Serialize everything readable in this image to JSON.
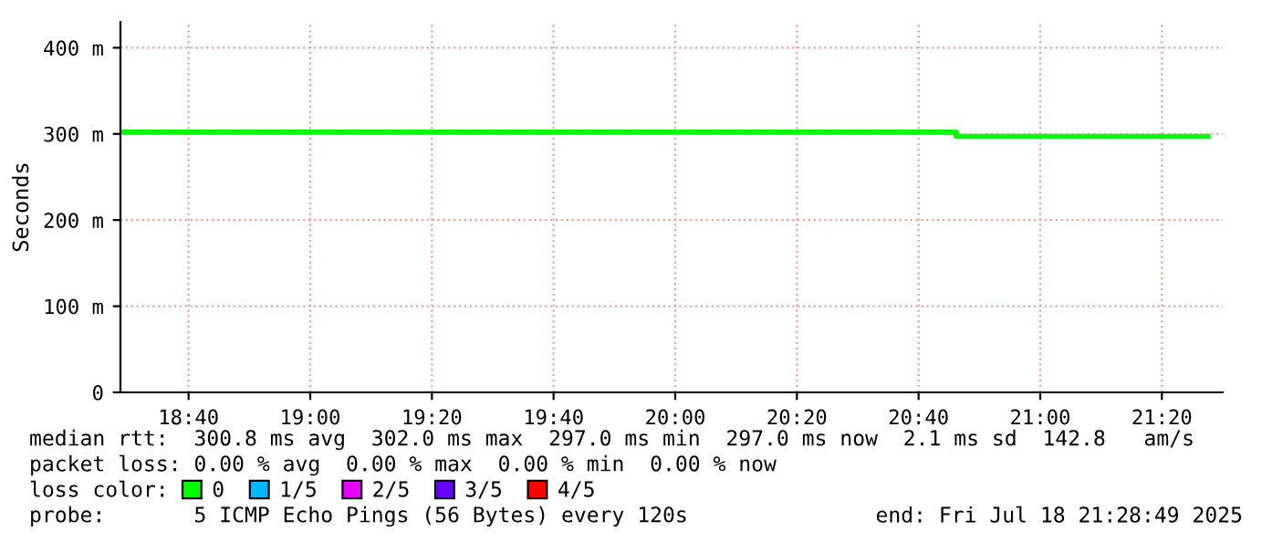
{
  "chart_data": {
    "type": "step",
    "ylabel": "Seconds",
    "series": [
      {
        "name": "0",
        "color": "#00ff00",
        "x": [
          18.48,
          20.77,
          21.46
        ],
        "values": [
          302,
          297,
          297
        ]
      },
      {
        "name": "1/5",
        "color": "#00b8ff"
      },
      {
        "name": "2/5",
        "color": "#e600ff"
      },
      {
        "name": "3/5",
        "color": "#6600ff"
      },
      {
        "name": "4/5",
        "color": "#ff0000"
      }
    ],
    "legend": "bottom",
    "legend_title": "loss color:",
    "xlim": [
      18.48,
      21.5
    ],
    "xticks": [
      {
        "value": 18.6667,
        "label": "18:40"
      },
      {
        "value": 19.0,
        "label": "19:00"
      },
      {
        "value": 19.3333,
        "label": "19:20"
      },
      {
        "value": 19.6667,
        "label": "19:40"
      },
      {
        "value": 20.0,
        "label": "20:00"
      },
      {
        "value": 20.3333,
        "label": "20:20"
      },
      {
        "value": 20.6667,
        "label": "20:40"
      },
      {
        "value": 21.0,
        "label": "21:00"
      },
      {
        "value": 21.3333,
        "label": "21:20"
      }
    ],
    "ylim": [
      0,
      430
    ],
    "yticks": [
      0,
      {
        "value": 100,
        "label": "100 m"
      },
      {
        "value": 200,
        "label": "200 m"
      },
      {
        "value": 300,
        "label": "300 m"
      },
      {
        "value": 400,
        "label": "400 m"
      }
    ],
    "grid": true,
    "annotations": [
      "median rtt:  300.8 ms avg  302.0 ms max  297.0 ms min  297.0 ms now  2.1 ms sd  142.8   am/s",
      "packet loss: 0.00 % avg  0.00 % max  0.00 % min  0.00 % now",
      "probe:       5 ICMP Echo Pings (56 Bytes) every 120s",
      "end: Fri Jul 18 21:28:49 2025"
    ]
  }
}
